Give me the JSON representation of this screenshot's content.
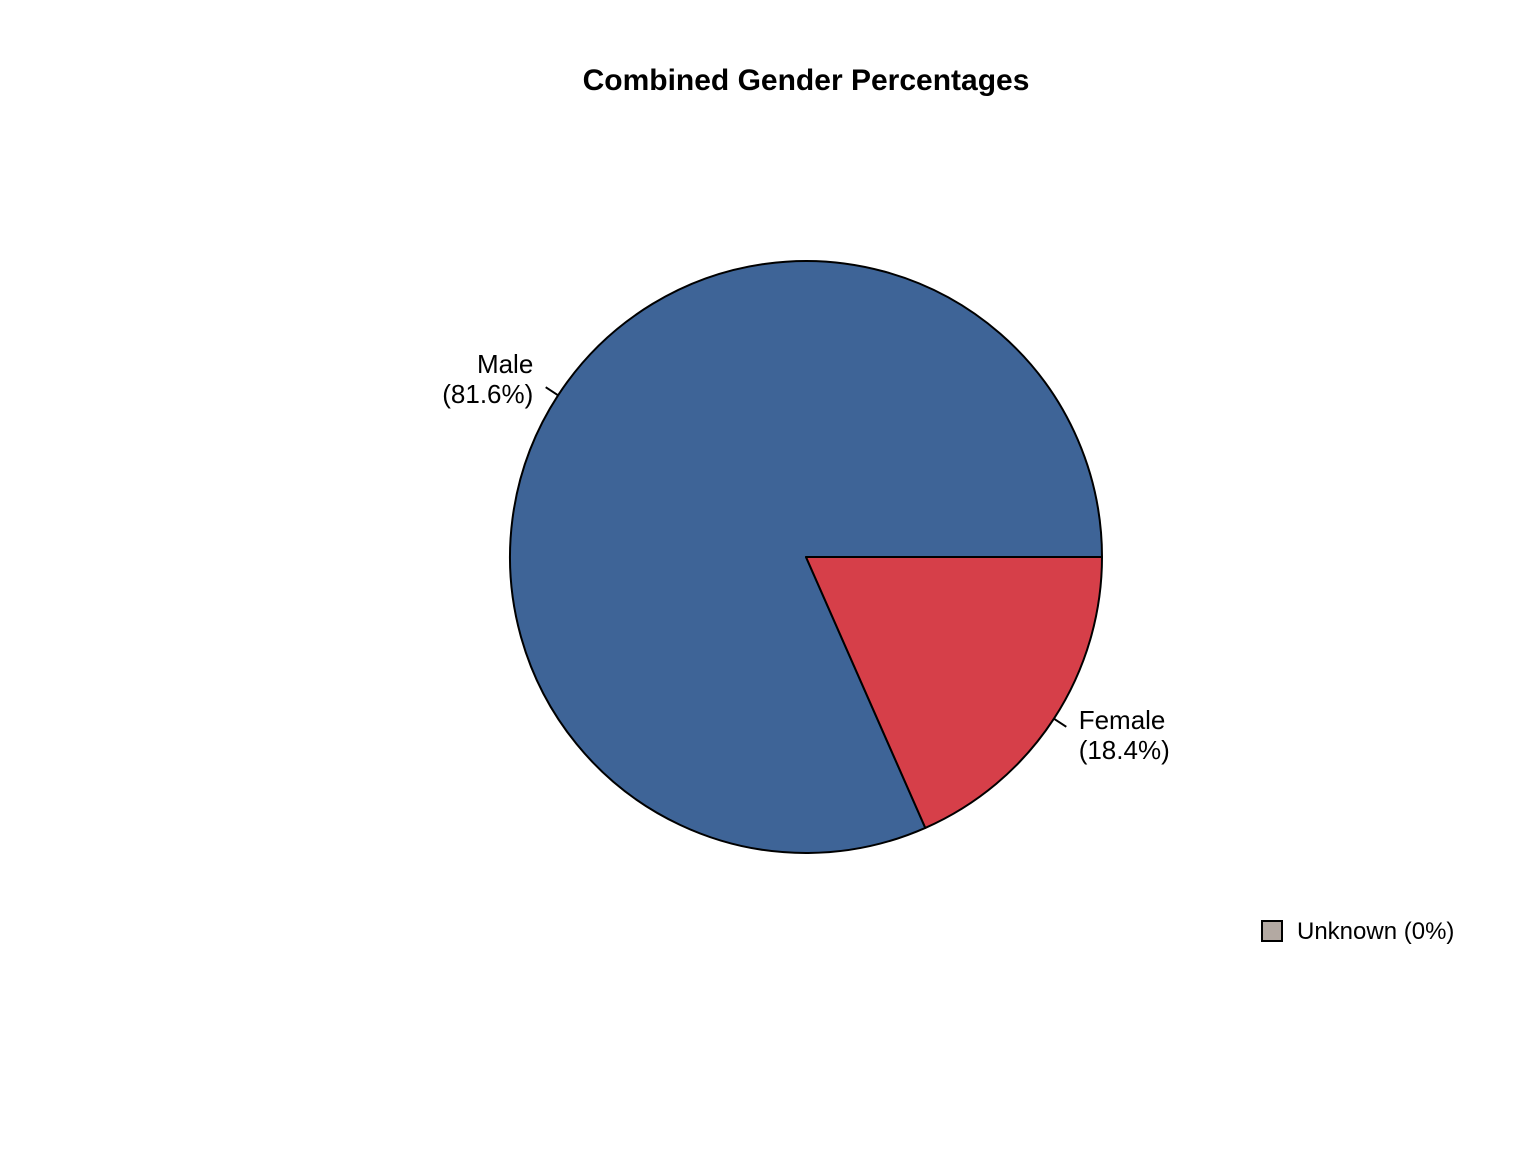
{
  "title": "Combined Gender Percentages",
  "colors": {
    "background": "#ffffff",
    "stroke": "#000000",
    "text": "#000000",
    "male_blue": "#3e6497",
    "female_red": "#d63f49",
    "unknown_gray": "#b3a9a2"
  },
  "chart_data": {
    "type": "pie",
    "title": "Combined Gender Percentages",
    "unit": "percent",
    "start_angle_deg": 0,
    "direction": "counterclockwise",
    "stroke_color": "#000000",
    "slices": [
      {
        "label": "Male",
        "value": 81.6,
        "label_lines": [
          "Male",
          "(81.6%)"
        ],
        "color": "#3e6497"
      },
      {
        "label": "Female",
        "value": 18.4,
        "label_lines": [
          "Female",
          "(18.4%)"
        ],
        "color": "#d63f49"
      },
      {
        "label": "Unknown",
        "value": 0,
        "label_lines": [],
        "color": "#b3a9a2"
      }
    ],
    "legend": {
      "position": "bottom-right",
      "entries": [
        {
          "label": "Unknown (0%)",
          "color": "#b3a9a2"
        }
      ]
    }
  }
}
